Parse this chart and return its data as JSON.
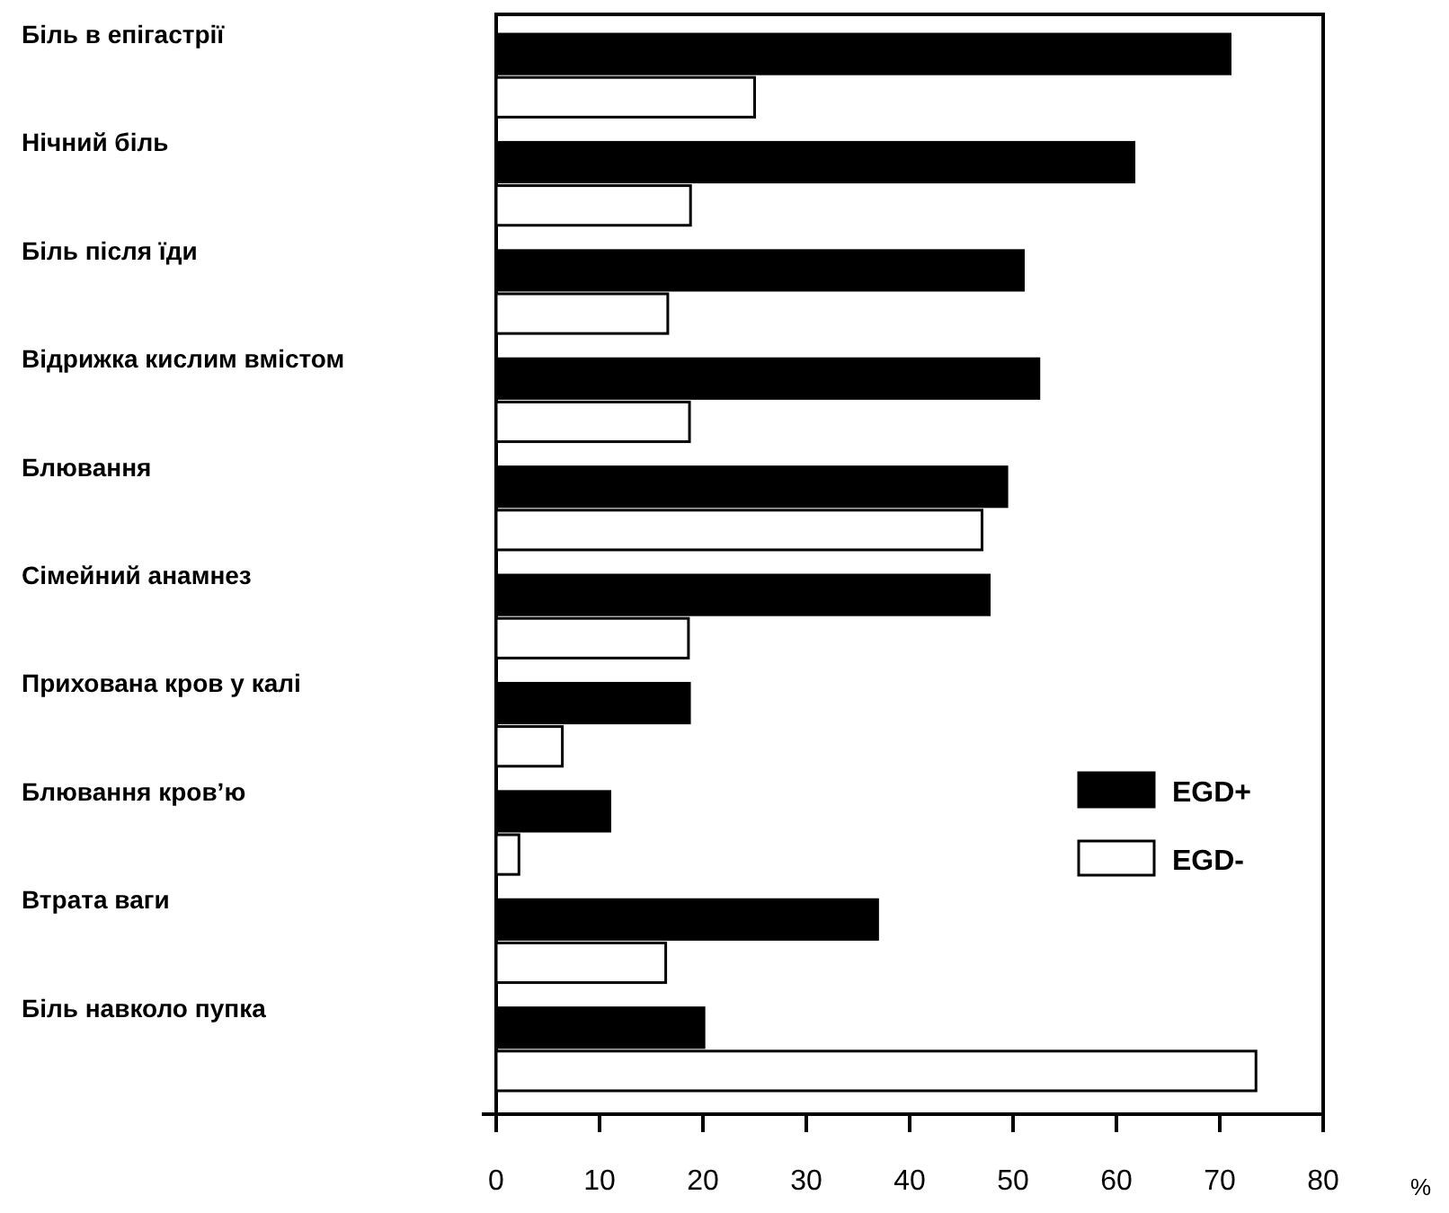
{
  "chart_data": {
    "type": "bar",
    "orientation": "horizontal",
    "xlabel": "%",
    "categories": [
      "Біль в епігастрії",
      "Нічний біль",
      "Біль після їди",
      "Відрижка кислим вмістом",
      "Блювання",
      "Сімейний анамнез",
      "Прихована кров у калі",
      "Блювання кров’ю",
      "Втрата ваги",
      "Біль навколо пупка"
    ],
    "series": [
      {
        "name": "EGD+",
        "color": "#000000",
        "values": [
          71,
          61.7,
          51,
          52.5,
          49.4,
          47.7,
          18.7,
          11,
          36.9,
          20.1
        ]
      },
      {
        "name": "EGD-",
        "color": "#ffffff",
        "values": [
          25,
          18.8,
          16.6,
          18.7,
          47,
          18.6,
          6.4,
          2.2,
          16.4,
          73.5
        ]
      }
    ],
    "xlim": [
      0,
      80
    ],
    "xticks": [
      0,
      10,
      20,
      30,
      40,
      50,
      60,
      70,
      80
    ],
    "grid": false,
    "legend": "right"
  }
}
